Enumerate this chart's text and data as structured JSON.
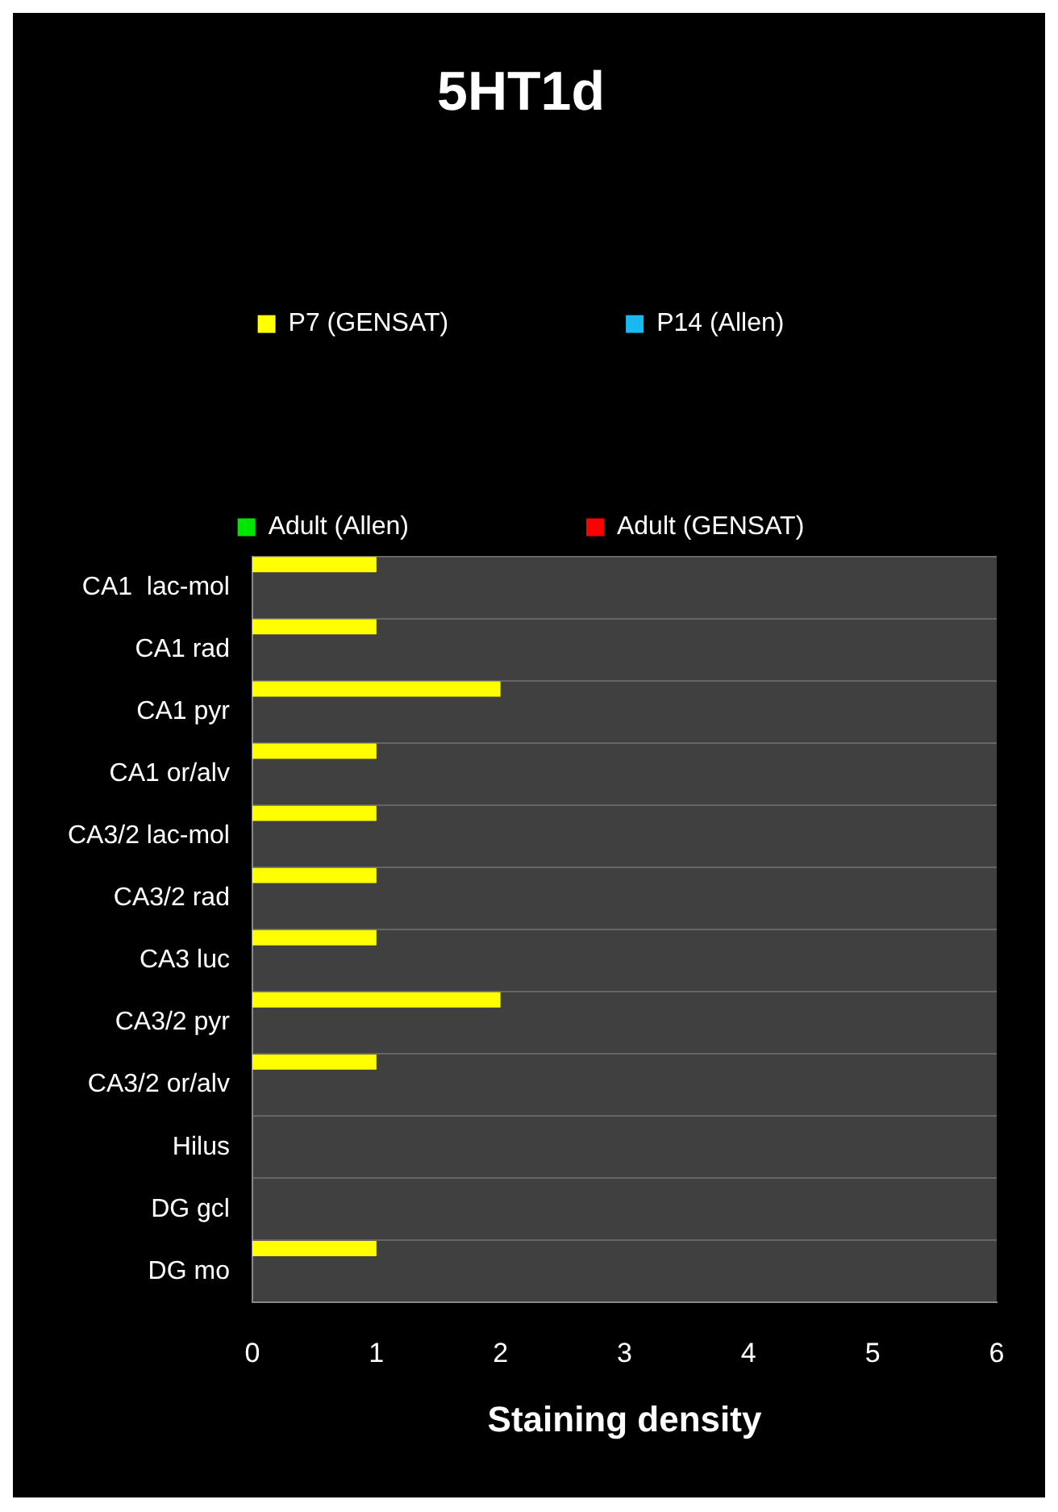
{
  "chart_data": {
    "type": "bar",
    "orientation": "horizontal",
    "title": "5HT1d",
    "xlabel": "Staining density",
    "categories": [
      "CA1  lac-mol",
      "CA1 rad",
      "CA1 pyr",
      "CA1 or/alv",
      "CA3/2 lac-mol",
      "CA3/2 rad",
      "CA3 luc",
      "CA3/2 pyr",
      "CA3/2 or/alv",
      "Hilus",
      "DG gcl",
      "DG mo"
    ],
    "series": [
      {
        "name": "P7 (GENSAT)",
        "color": "#ffff00",
        "values": [
          1,
          1,
          2,
          1,
          1,
          1,
          1,
          2,
          1,
          null,
          null,
          1
        ]
      },
      {
        "name": "P14 (Allen)",
        "color": "#1ab8f0",
        "values": [
          null,
          null,
          null,
          null,
          null,
          null,
          null,
          null,
          null,
          null,
          null,
          null
        ]
      },
      {
        "name": "Adult (Allen)",
        "color": "#00e600",
        "values": [
          null,
          null,
          null,
          null,
          null,
          null,
          null,
          null,
          null,
          null,
          null,
          null
        ]
      },
      {
        "name": "Adult (GENSAT)",
        "color": "#ff0000",
        "values": [
          null,
          null,
          null,
          null,
          null,
          null,
          null,
          null,
          null,
          null,
          null,
          null
        ]
      }
    ],
    "xlim": [
      0,
      6
    ],
    "xticks": [
      0,
      1,
      2,
      3,
      4,
      5,
      6
    ],
    "grid": "y",
    "legend": "top"
  }
}
